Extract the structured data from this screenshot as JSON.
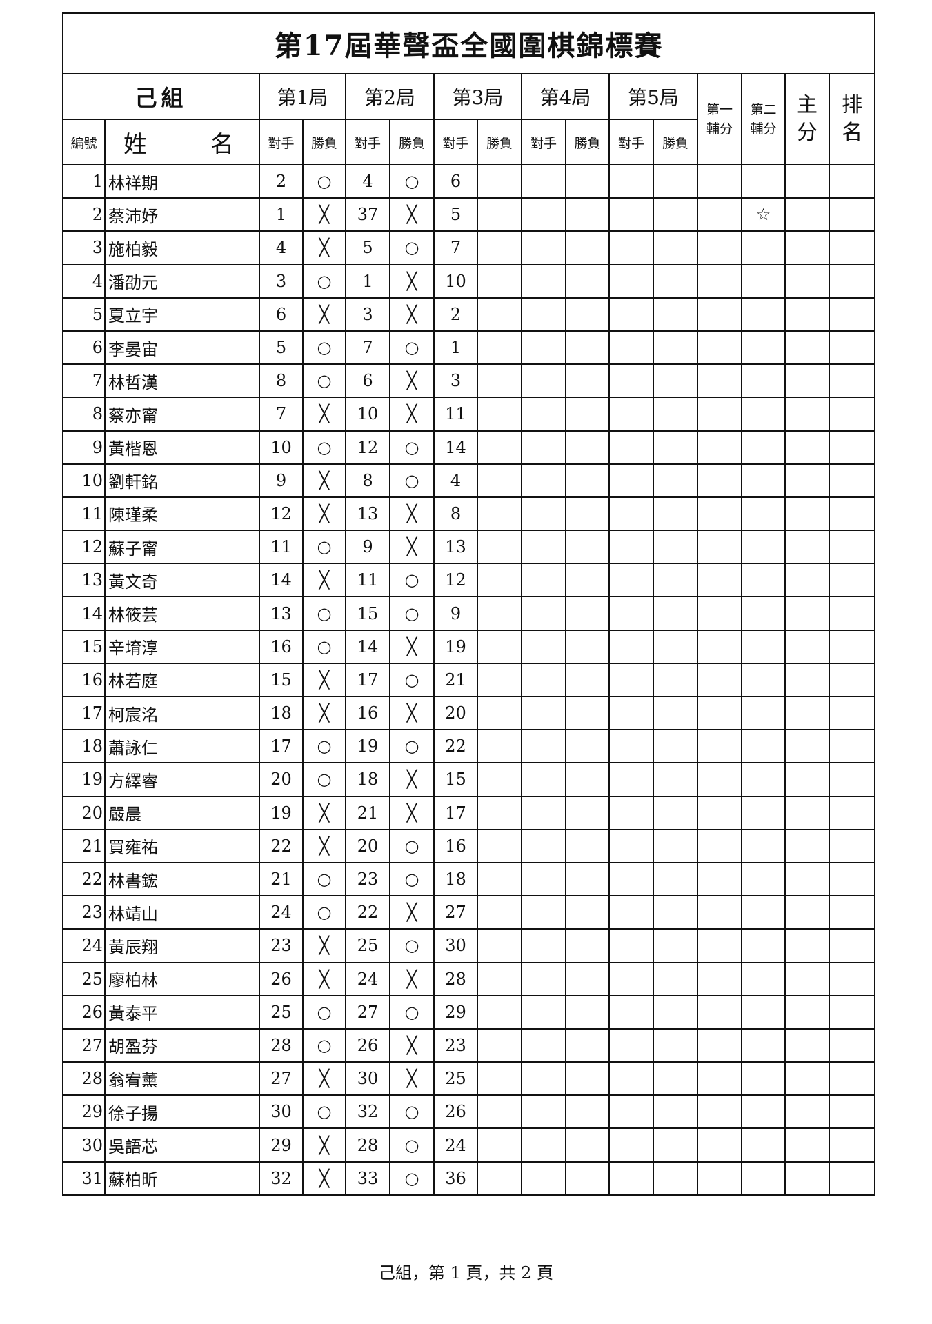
{
  "title": "第17屆華聲盃全國圍棋錦標賽",
  "group_label": "己組",
  "rounds": [
    "第1局",
    "第2局",
    "第3局",
    "第4局",
    "第5局"
  ],
  "sub_headers": {
    "opponent": "對手",
    "result": "勝負"
  },
  "columns": {
    "id": "編號",
    "name_left": "姓",
    "name_right": "名",
    "tiebreak1": [
      "第一",
      "輔分"
    ],
    "tiebreak2": [
      "第二",
      "輔分"
    ],
    "main_score": [
      "主",
      "分"
    ],
    "rank": [
      "排",
      "名"
    ]
  },
  "result_symbols": {
    "win": "○",
    "loss": "╳"
  },
  "players": [
    {
      "id": "1",
      "name": "林祥期",
      "games": [
        [
          "2",
          "○"
        ],
        [
          "4",
          "○"
        ],
        [
          "6",
          ""
        ]
      ],
      "tb2": ""
    },
    {
      "id": "2",
      "name": "蔡沛妤",
      "games": [
        [
          "1",
          "╳"
        ],
        [
          "37",
          "╳"
        ],
        [
          "5",
          ""
        ]
      ],
      "tb2": "☆"
    },
    {
      "id": "3",
      "name": "施柏毅",
      "games": [
        [
          "4",
          "╳"
        ],
        [
          "5",
          "○"
        ],
        [
          "7",
          ""
        ]
      ],
      "tb2": ""
    },
    {
      "id": "4",
      "name": "潘劭元",
      "games": [
        [
          "3",
          "○"
        ],
        [
          "1",
          "╳"
        ],
        [
          "10",
          ""
        ]
      ],
      "tb2": ""
    },
    {
      "id": "5",
      "name": "夏立宇",
      "games": [
        [
          "6",
          "╳"
        ],
        [
          "3",
          "╳"
        ],
        [
          "2",
          ""
        ]
      ],
      "tb2": ""
    },
    {
      "id": "6",
      "name": "李晏宙",
      "games": [
        [
          "5",
          "○"
        ],
        [
          "7",
          "○"
        ],
        [
          "1",
          ""
        ]
      ],
      "tb2": ""
    },
    {
      "id": "7",
      "name": "林哲漢",
      "games": [
        [
          "8",
          "○"
        ],
        [
          "6",
          "╳"
        ],
        [
          "3",
          ""
        ]
      ],
      "tb2": ""
    },
    {
      "id": "8",
      "name": "蔡亦甯",
      "games": [
        [
          "7",
          "╳"
        ],
        [
          "10",
          "╳"
        ],
        [
          "11",
          ""
        ]
      ],
      "tb2": ""
    },
    {
      "id": "9",
      "name": "黃楷恩",
      "games": [
        [
          "10",
          "○"
        ],
        [
          "12",
          "○"
        ],
        [
          "14",
          ""
        ]
      ],
      "tb2": ""
    },
    {
      "id": "10",
      "name": "劉軒銘",
      "games": [
        [
          "9",
          "╳"
        ],
        [
          "8",
          "○"
        ],
        [
          "4",
          ""
        ]
      ],
      "tb2": ""
    },
    {
      "id": "11",
      "name": "陳瑾柔",
      "games": [
        [
          "12",
          "╳"
        ],
        [
          "13",
          "╳"
        ],
        [
          "8",
          ""
        ]
      ],
      "tb2": ""
    },
    {
      "id": "12",
      "name": "蘇子甯",
      "games": [
        [
          "11",
          "○"
        ],
        [
          "9",
          "╳"
        ],
        [
          "13",
          ""
        ]
      ],
      "tb2": ""
    },
    {
      "id": "13",
      "name": "黃文奇",
      "games": [
        [
          "14",
          "╳"
        ],
        [
          "11",
          "○"
        ],
        [
          "12",
          ""
        ]
      ],
      "tb2": ""
    },
    {
      "id": "14",
      "name": "林筱芸",
      "games": [
        [
          "13",
          "○"
        ],
        [
          "15",
          "○"
        ],
        [
          "9",
          ""
        ]
      ],
      "tb2": ""
    },
    {
      "id": "15",
      "name": "辛堉淳",
      "games": [
        [
          "16",
          "○"
        ],
        [
          "14",
          "╳"
        ],
        [
          "19",
          ""
        ]
      ],
      "tb2": ""
    },
    {
      "id": "16",
      "name": "林若庭",
      "games": [
        [
          "15",
          "╳"
        ],
        [
          "17",
          "○"
        ],
        [
          "21",
          ""
        ]
      ],
      "tb2": ""
    },
    {
      "id": "17",
      "name": "柯宸洺",
      "games": [
        [
          "18",
          "╳"
        ],
        [
          "16",
          "╳"
        ],
        [
          "20",
          ""
        ]
      ],
      "tb2": ""
    },
    {
      "id": "18",
      "name": "蕭詠仁",
      "games": [
        [
          "17",
          "○"
        ],
        [
          "19",
          "○"
        ],
        [
          "22",
          ""
        ]
      ],
      "tb2": ""
    },
    {
      "id": "19",
      "name": "方繹睿",
      "games": [
        [
          "20",
          "○"
        ],
        [
          "18",
          "╳"
        ],
        [
          "15",
          ""
        ]
      ],
      "tb2": ""
    },
    {
      "id": "20",
      "name": "嚴晨",
      "games": [
        [
          "19",
          "╳"
        ],
        [
          "21",
          "╳"
        ],
        [
          "17",
          ""
        ]
      ],
      "tb2": ""
    },
    {
      "id": "21",
      "name": "買雍祐",
      "games": [
        [
          "22",
          "╳"
        ],
        [
          "20",
          "○"
        ],
        [
          "16",
          ""
        ]
      ],
      "tb2": ""
    },
    {
      "id": "22",
      "name": "林書鋐",
      "games": [
        [
          "21",
          "○"
        ],
        [
          "23",
          "○"
        ],
        [
          "18",
          ""
        ]
      ],
      "tb2": ""
    },
    {
      "id": "23",
      "name": "林靖山",
      "games": [
        [
          "24",
          "○"
        ],
        [
          "22",
          "╳"
        ],
        [
          "27",
          ""
        ]
      ],
      "tb2": ""
    },
    {
      "id": "24",
      "name": "黃辰翔",
      "games": [
        [
          "23",
          "╳"
        ],
        [
          "25",
          "○"
        ],
        [
          "30",
          ""
        ]
      ],
      "tb2": ""
    },
    {
      "id": "25",
      "name": "廖柏林",
      "games": [
        [
          "26",
          "╳"
        ],
        [
          "24",
          "╳"
        ],
        [
          "28",
          ""
        ]
      ],
      "tb2": ""
    },
    {
      "id": "26",
      "name": "黃泰平",
      "games": [
        [
          "25",
          "○"
        ],
        [
          "27",
          "○"
        ],
        [
          "29",
          ""
        ]
      ],
      "tb2": ""
    },
    {
      "id": "27",
      "name": "胡盈芬",
      "games": [
        [
          "28",
          "○"
        ],
        [
          "26",
          "╳"
        ],
        [
          "23",
          ""
        ]
      ],
      "tb2": ""
    },
    {
      "id": "28",
      "name": "翁宥薰",
      "games": [
        [
          "27",
          "╳"
        ],
        [
          "30",
          "╳"
        ],
        [
          "25",
          ""
        ]
      ],
      "tb2": ""
    },
    {
      "id": "29",
      "name": "徐子揚",
      "games": [
        [
          "30",
          "○"
        ],
        [
          "32",
          "○"
        ],
        [
          "26",
          ""
        ]
      ],
      "tb2": ""
    },
    {
      "id": "30",
      "name": "吳語芯",
      "games": [
        [
          "29",
          "╳"
        ],
        [
          "28",
          "○"
        ],
        [
          "24",
          ""
        ]
      ],
      "tb2": ""
    },
    {
      "id": "31",
      "name": "蘇柏昕",
      "games": [
        [
          "32",
          "╳"
        ],
        [
          "33",
          "○"
        ],
        [
          "36",
          ""
        ]
      ],
      "tb2": ""
    }
  ],
  "footer": "己組，第 1 頁，共 2 頁"
}
